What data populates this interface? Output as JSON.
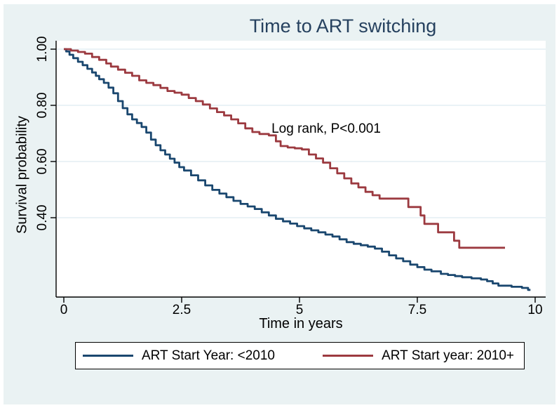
{
  "title": "Time to ART switching",
  "annotation": "Log rank, P<0.001",
  "x_axis": {
    "label": "Time in years",
    "ticks": [
      "0",
      "2.5",
      "5",
      "7.5",
      "10"
    ]
  },
  "y_axis": {
    "label": "Survival probability",
    "ticks": [
      "1.00",
      "0.80",
      "0.60",
      "0.40"
    ]
  },
  "legend": {
    "items": [
      {
        "label": "ART Start Year: <2010",
        "color": "#1a476f"
      },
      {
        "label": "ART Start year: 2010+",
        "color": "#9c3a40"
      }
    ]
  },
  "colors": {
    "background": "#eaf2f3",
    "plot_background": "#ffffff",
    "gridline": "#dde9f1",
    "axis": "#000000",
    "title_text": "#26415f",
    "pre2010_line": "#1a476f",
    "post2010_line": "#9c3a40"
  },
  "chart_data": {
    "type": "line",
    "subtype": "kaplan-meier-step",
    "title": "Time to ART switching",
    "xlabel": "Time in years",
    "ylabel": "Survival probability",
    "xlim": [
      0,
      10
    ],
    "ylim": [
      0.118,
      1.03
    ],
    "x_ticks": [
      0,
      2.5,
      5,
      7.5,
      10
    ],
    "y_ticks": [
      1.0,
      0.8,
      0.6,
      0.4
    ],
    "grid": "horizontal",
    "legend_position": "bottom",
    "annotation": {
      "text": "Log rank, P<0.001",
      "x": 5.57,
      "y": 0.7125
    },
    "series": [
      {
        "name": "ART Start Year: <2010",
        "color": "#1a476f",
        "step": true,
        "points": [
          [
            0,
            1.0
          ],
          [
            0.05,
            0.992
          ],
          [
            0.12,
            0.98
          ],
          [
            0.2,
            0.968
          ],
          [
            0.3,
            0.955
          ],
          [
            0.4,
            0.943
          ],
          [
            0.5,
            0.93
          ],
          [
            0.6,
            0.917
          ],
          [
            0.68,
            0.905
          ],
          [
            0.75,
            0.893
          ],
          [
            0.85,
            0.88
          ],
          [
            0.95,
            0.863
          ],
          [
            1.05,
            0.843
          ],
          [
            1.15,
            0.815
          ],
          [
            1.25,
            0.79
          ],
          [
            1.35,
            0.768
          ],
          [
            1.45,
            0.75
          ],
          [
            1.55,
            0.737
          ],
          [
            1.65,
            0.723
          ],
          [
            1.75,
            0.703
          ],
          [
            1.85,
            0.678
          ],
          [
            1.95,
            0.658
          ],
          [
            2.05,
            0.64
          ],
          [
            2.15,
            0.625
          ],
          [
            2.25,
            0.61
          ],
          [
            2.35,
            0.596
          ],
          [
            2.45,
            0.58
          ],
          [
            2.55,
            0.568
          ],
          [
            2.7,
            0.551
          ],
          [
            2.85,
            0.533
          ],
          [
            3.0,
            0.515
          ],
          [
            3.15,
            0.499
          ],
          [
            3.3,
            0.486
          ],
          [
            3.45,
            0.473
          ],
          [
            3.6,
            0.46
          ],
          [
            3.75,
            0.449
          ],
          [
            3.9,
            0.44
          ],
          [
            4.05,
            0.431
          ],
          [
            4.2,
            0.419
          ],
          [
            4.35,
            0.408
          ],
          [
            4.5,
            0.396
          ],
          [
            4.65,
            0.387
          ],
          [
            4.8,
            0.379
          ],
          [
            4.95,
            0.37
          ],
          [
            5.1,
            0.362
          ],
          [
            5.25,
            0.355
          ],
          [
            5.4,
            0.348
          ],
          [
            5.55,
            0.34
          ],
          [
            5.7,
            0.333
          ],
          [
            5.85,
            0.323
          ],
          [
            6.0,
            0.313
          ],
          [
            6.15,
            0.307
          ],
          [
            6.3,
            0.302
          ],
          [
            6.45,
            0.297
          ],
          [
            6.6,
            0.29
          ],
          [
            6.75,
            0.279
          ],
          [
            6.9,
            0.266
          ],
          [
            7.05,
            0.255
          ],
          [
            7.2,
            0.245
          ],
          [
            7.35,
            0.233
          ],
          [
            7.5,
            0.224
          ],
          [
            7.65,
            0.215
          ],
          [
            7.8,
            0.209
          ],
          [
            8.0,
            0.2
          ],
          [
            8.15,
            0.196
          ],
          [
            8.3,
            0.192
          ],
          [
            8.45,
            0.188
          ],
          [
            8.65,
            0.184
          ],
          [
            8.85,
            0.18
          ],
          [
            8.98,
            0.174
          ],
          [
            9.1,
            0.166
          ],
          [
            9.22,
            0.158
          ],
          [
            9.5,
            0.154
          ],
          [
            9.72,
            0.15
          ],
          [
            9.85,
            0.143
          ],
          [
            9.9,
            0.143
          ]
        ]
      },
      {
        "name": "ART Start year: 2010+",
        "color": "#9c3a40",
        "step": true,
        "points": [
          [
            0,
            1.0
          ],
          [
            0.15,
            0.995
          ],
          [
            0.3,
            0.99
          ],
          [
            0.45,
            0.984
          ],
          [
            0.6,
            0.972
          ],
          [
            0.75,
            0.962
          ],
          [
            0.9,
            0.949
          ],
          [
            1.0,
            0.938
          ],
          [
            1.15,
            0.927
          ],
          [
            1.3,
            0.916
          ],
          [
            1.45,
            0.905
          ],
          [
            1.6,
            0.889
          ],
          [
            1.75,
            0.88
          ],
          [
            1.9,
            0.872
          ],
          [
            2.05,
            0.862
          ],
          [
            2.2,
            0.851
          ],
          [
            2.35,
            0.845
          ],
          [
            2.5,
            0.838
          ],
          [
            2.65,
            0.826
          ],
          [
            2.8,
            0.815
          ],
          [
            2.95,
            0.803
          ],
          [
            3.1,
            0.789
          ],
          [
            3.25,
            0.776
          ],
          [
            3.4,
            0.764
          ],
          [
            3.55,
            0.75
          ],
          [
            3.7,
            0.736
          ],
          [
            3.85,
            0.718
          ],
          [
            4.0,
            0.705
          ],
          [
            4.15,
            0.698
          ],
          [
            4.35,
            0.693
          ],
          [
            4.5,
            0.672
          ],
          [
            4.6,
            0.655
          ],
          [
            4.75,
            0.65
          ],
          [
            4.9,
            0.647
          ],
          [
            5.05,
            0.643
          ],
          [
            5.2,
            0.625
          ],
          [
            5.35,
            0.611
          ],
          [
            5.5,
            0.596
          ],
          [
            5.65,
            0.576
          ],
          [
            5.8,
            0.558
          ],
          [
            5.95,
            0.54
          ],
          [
            6.1,
            0.522
          ],
          [
            6.25,
            0.508
          ],
          [
            6.4,
            0.492
          ],
          [
            6.55,
            0.48
          ],
          [
            6.7,
            0.468
          ],
          [
            7.31,
            0.438
          ],
          [
            7.57,
            0.408
          ],
          [
            7.65,
            0.378
          ],
          [
            7.94,
            0.348
          ],
          [
            8.28,
            0.318
          ],
          [
            8.39,
            0.293
          ],
          [
            9.36,
            0.293
          ]
        ]
      }
    ]
  }
}
